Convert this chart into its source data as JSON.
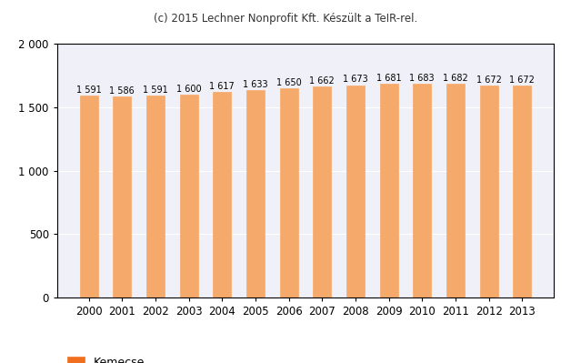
{
  "years": [
    2000,
    2001,
    2002,
    2003,
    2004,
    2005,
    2006,
    2007,
    2008,
    2009,
    2010,
    2011,
    2012,
    2013
  ],
  "values": [
    1591,
    1586,
    1591,
    1600,
    1617,
    1633,
    1650,
    1662,
    1673,
    1681,
    1683,
    1682,
    1672,
    1672
  ],
  "bar_color": "#F5A96A",
  "bar_edge_color": "#F5A96A",
  "legend_color": "#F07020",
  "background_color": "#ffffff",
  "plot_bg_color": "#F0F0F8",
  "grid_color": "#ffffff",
  "spine_color": "#000000",
  "title": "(c) 2015 Lechner Nonprofit Kft. Készült a TeIR-rel.",
  "title_fontsize": 8.5,
  "legend_label": "Kemecse",
  "ylim": [
    0,
    2000
  ],
  "yticks": [
    0,
    500,
    1000,
    1500,
    2000
  ],
  "ytick_labels": [
    "0",
    "500",
    "1 000",
    "1 500",
    "2 000"
  ],
  "bar_label_fontsize": 7,
  "axis_fontsize": 8.5,
  "legend_fontsize": 9,
  "value_label_color": "#000000",
  "bar_width": 0.55
}
